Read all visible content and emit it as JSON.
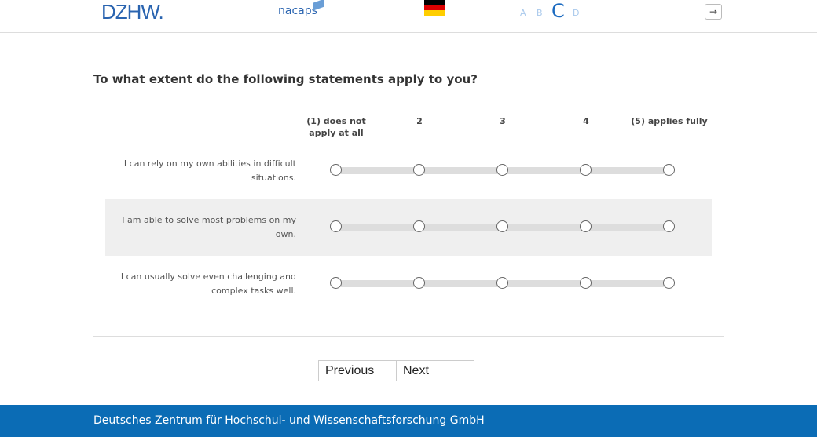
{
  "header": {
    "logo_dzhw": "DZHW.",
    "logo_nacaps": "nacaps",
    "flag_colors": [
      "#000000",
      "#dd0000",
      "#ffce00"
    ],
    "font_sizes": [
      "A",
      "B",
      "C",
      "D"
    ],
    "active_font_size": "C",
    "exit_icon": "→"
  },
  "question": "To what extent do the following statements apply to you?",
  "scale": [
    "(1) does not apply at all",
    "2",
    "3",
    "4",
    "(5) applies fully"
  ],
  "items": [
    {
      "label": "I can rely on my own abilities in difficult situations.",
      "selected": null
    },
    {
      "label": "I am able to solve most problems on my own.",
      "selected": null
    },
    {
      "label": "I can usually solve even challenging and complex tasks well.",
      "selected": null
    }
  ],
  "nav": {
    "previous": "Previous",
    "next": "Next"
  },
  "footer": "Deutsches Zentrum für Hochschul- und Wissenschaftsforschung GmbH"
}
